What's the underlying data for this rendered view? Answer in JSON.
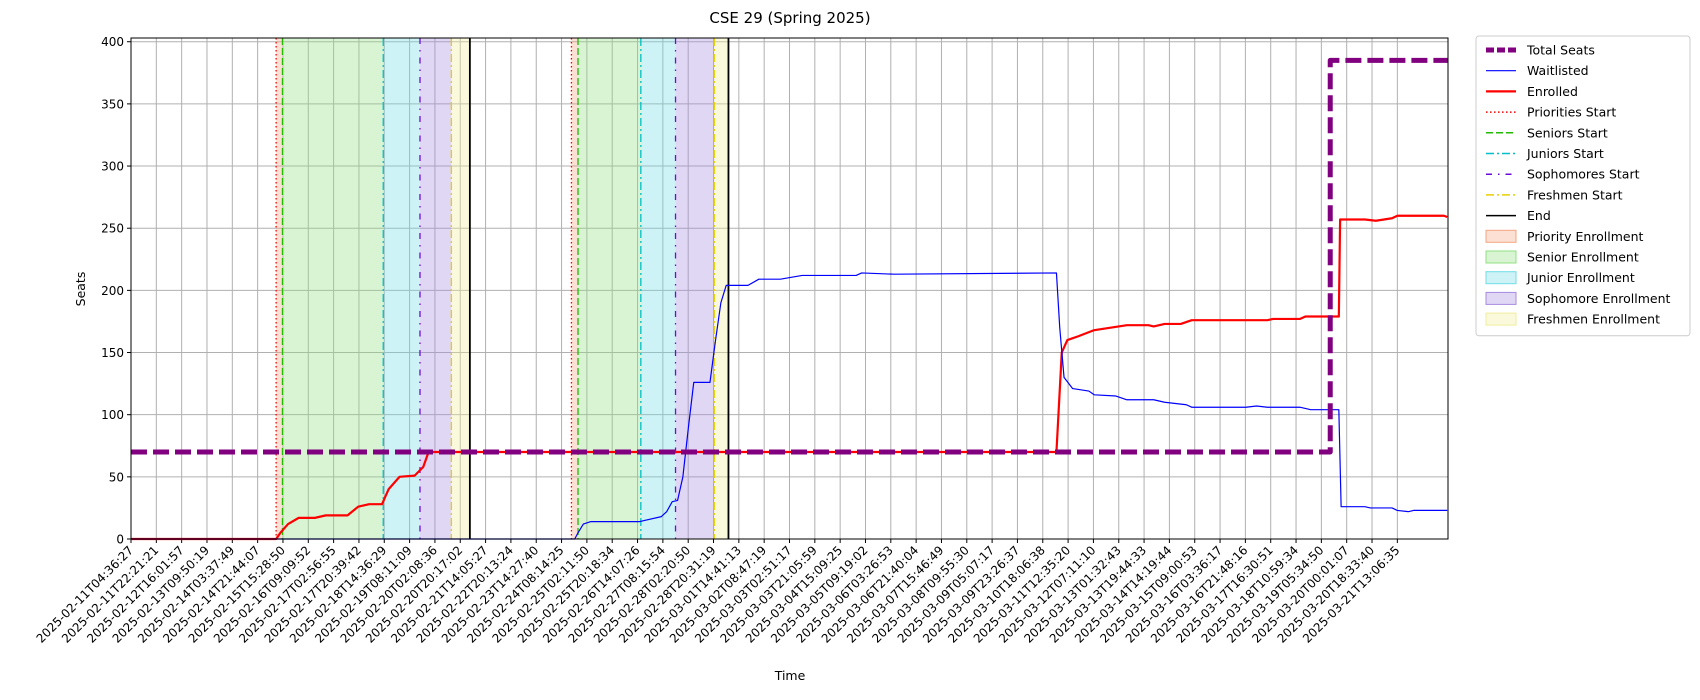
{
  "chart_data": {
    "type": "line",
    "title": "CSE 29 (Spring 2025)",
    "xlabel": "Time",
    "ylabel": "Seats",
    "xlim": [
      0,
      52
    ],
    "ylim": [
      0,
      403
    ],
    "yticks": [
      0,
      50,
      100,
      150,
      200,
      250,
      300,
      350,
      400
    ],
    "xticks": [
      {
        "value": 0,
        "label": "2025-02-11T04:36:27"
      },
      {
        "value": 1,
        "label": "2025-02-11T22:21:21"
      },
      {
        "value": 2,
        "label": "2025-02-12T16:01:57"
      },
      {
        "value": 3,
        "label": "2025-02-13T09:50:19"
      },
      {
        "value": 4,
        "label": "2025-02-14T03:37:49"
      },
      {
        "value": 5,
        "label": "2025-02-14T21:44:07"
      },
      {
        "value": 6,
        "label": "2025-02-15T15:28:50"
      },
      {
        "value": 7,
        "label": "2025-02-16T09:09:52"
      },
      {
        "value": 8,
        "label": "2025-02-17T02:56:55"
      },
      {
        "value": 9,
        "label": "2025-02-17T20:39:42"
      },
      {
        "value": 10,
        "label": "2025-02-18T14:36:29"
      },
      {
        "value": 11,
        "label": "2025-02-19T08:11:09"
      },
      {
        "value": 12,
        "label": "2025-02-20T02:08:36"
      },
      {
        "value": 13,
        "label": "2025-02-20T20:17:02"
      },
      {
        "value": 14,
        "label": "2025-02-21T14:05:27"
      },
      {
        "value": 15,
        "label": "2025-02-22T20:13:24"
      },
      {
        "value": 16,
        "label": "2025-02-23T14:27:40"
      },
      {
        "value": 17,
        "label": "2025-02-24T08:14:25"
      },
      {
        "value": 18,
        "label": "2025-02-25T02:11:50"
      },
      {
        "value": 19,
        "label": "2025-02-25T20:18:34"
      },
      {
        "value": 20,
        "label": "2025-02-26T14:07:26"
      },
      {
        "value": 21,
        "label": "2025-02-27T08:15:54"
      },
      {
        "value": 22,
        "label": "2025-02-28T02:20:50"
      },
      {
        "value": 23,
        "label": "2025-02-28T20:31:19"
      },
      {
        "value": 24,
        "label": "2025-03-01T14:41:13"
      },
      {
        "value": 25,
        "label": "2025-03-02T08:47:19"
      },
      {
        "value": 26,
        "label": "2025-03-03T02:51:17"
      },
      {
        "value": 27,
        "label": "2025-03-03T21:05:59"
      },
      {
        "value": 28,
        "label": "2025-03-04T15:09:25"
      },
      {
        "value": 29,
        "label": "2025-03-05T09:19:02"
      },
      {
        "value": 30,
        "label": "2025-03-06T03:26:53"
      },
      {
        "value": 31,
        "label": "2025-03-06T21:40:04"
      },
      {
        "value": 32,
        "label": "2025-03-07T15:46:49"
      },
      {
        "value": 33,
        "label": "2025-03-08T09:55:30"
      },
      {
        "value": 34,
        "label": "2025-03-09T05:07:17"
      },
      {
        "value": 35,
        "label": "2025-03-09T23:26:37"
      },
      {
        "value": 36,
        "label": "2025-03-10T18:06:38"
      },
      {
        "value": 37,
        "label": "2025-03-11T12:35:20"
      },
      {
        "value": 38,
        "label": "2025-03-12T07:11:10"
      },
      {
        "value": 39,
        "label": "2025-03-13T01:32:43"
      },
      {
        "value": 40,
        "label": "2025-03-13T19:44:33"
      },
      {
        "value": 41,
        "label": "2025-03-14T14:19:44"
      },
      {
        "value": 42,
        "label": "2025-03-15T09:00:53"
      },
      {
        "value": 43,
        "label": "2025-03-16T03:36:17"
      },
      {
        "value": 44,
        "label": "2025-03-16T21:48:16"
      },
      {
        "value": 45,
        "label": "2025-03-17T16:30:51"
      },
      {
        "value": 46,
        "label": "2025-03-18T10:59:34"
      },
      {
        "value": 47,
        "label": "2025-03-19T05:34:50"
      },
      {
        "value": 48,
        "label": "2025-03-20T00:01:07"
      },
      {
        "value": 49,
        "label": "2025-03-20T18:33:40"
      },
      {
        "value": 50,
        "label": "2025-03-21T13:06:35"
      }
    ],
    "grid": true,
    "legend": "outside-right",
    "series": [
      {
        "name": "Total Seats",
        "color": "purple",
        "width": 5,
        "dash": "dashed",
        "x": [
          0,
          47.35,
          47.35,
          52
        ],
        "values": [
          70,
          70,
          385,
          385
        ]
      },
      {
        "name": "Waitlisted",
        "color": "blue",
        "width": 1.2,
        "dash": "solid",
        "x": [
          0,
          17.52,
          17.65,
          17.86,
          18.16,
          20.09,
          20.3,
          20.94,
          21.15,
          21.37,
          21.58,
          21.79,
          22.01,
          22.22,
          22.86,
          23.08,
          23.29,
          23.5,
          24.36,
          24.79,
          25.64,
          26.5,
          28.63,
          28.85,
          30.13,
          36.54,
          36.67,
          36.84,
          37.18,
          37.82,
          38.03,
          38.89,
          39.32,
          40.38,
          40.81,
          41.67,
          41.88,
          44.02,
          44.44,
          44.87,
          46.15,
          46.58,
          47.69,
          47.78,
          48.72,
          48.93,
          49.79,
          50.0,
          50.43,
          50.64,
          51.97
        ],
        "values": [
          0,
          0,
          5,
          12,
          14,
          14,
          15,
          18,
          22,
          30,
          31,
          50,
          90,
          126,
          126,
          160,
          190,
          204,
          204,
          209,
          209,
          212,
          212,
          214,
          213,
          214,
          170,
          130,
          121,
          119,
          116,
          115,
          112,
          112,
          110,
          108,
          106,
          106,
          107,
          106,
          106,
          104,
          104,
          26,
          26,
          25,
          25,
          23,
          22,
          23,
          23
        ]
      },
      {
        "name": "Enrolled",
        "color": "red",
        "width": 2.2,
        "dash": "solid",
        "x": [
          0,
          5.73,
          5.9,
          6.2,
          6.62,
          7.26,
          7.69,
          8.55,
          8.97,
          9.4,
          9.91,
          10.17,
          10.6,
          11.2,
          11.54,
          11.75,
          36.54,
          36.75,
          36.97,
          37.39,
          38.03,
          39.32,
          40.17,
          40.38,
          40.81,
          41.45,
          41.88,
          44.87,
          45.09,
          46.15,
          46.37,
          47.69,
          47.74,
          48.72,
          49.15,
          49.79,
          50.0,
          51.84,
          51.97
        ],
        "values": [
          0,
          0,
          5,
          12,
          17,
          17,
          19,
          19,
          26,
          28,
          28,
          40,
          50,
          51,
          58,
          70,
          70,
          150,
          160,
          163,
          168,
          172,
          172,
          171,
          173,
          173,
          176,
          176,
          177,
          177,
          179,
          179,
          257,
          257,
          256,
          258,
          260,
          260,
          259
        ]
      }
    ],
    "markers": [
      {
        "name": "Priorities Start",
        "color": "red",
        "dash": "dotted",
        "x": [
          5.73,
          17.39
        ]
      },
      {
        "name": "Seniors Start",
        "color": "#22bb00",
        "dash": "dashed",
        "x": [
          5.98,
          17.65
        ]
      },
      {
        "name": "Juniors Start",
        "color": "#00bfc8",
        "dash": "dashdot",
        "x": [
          9.96,
          20.13
        ]
      },
      {
        "name": "Sophomores Start",
        "color": "#6a0dd8",
        "dash": "loose",
        "x": [
          11.41,
          21.5
        ]
      },
      {
        "name": "Freshmen Start",
        "color": "#e8d000",
        "dash": "dashdot",
        "x": [
          12.65,
          23.03
        ]
      },
      {
        "name": "End",
        "color": "black",
        "dash": "solid",
        "x": [
          13.38,
          23.59
        ]
      }
    ],
    "spans": [
      {
        "name": "Priority Enrollment",
        "color": "#f4a582",
        "ranges": [
          [
            5.73,
            5.98
          ],
          [
            17.39,
            17.65
          ]
        ]
      },
      {
        "name": "Senior Enrollment",
        "color": "#90e080",
        "ranges": [
          [
            5.98,
            9.96
          ],
          [
            17.65,
            20.13
          ]
        ]
      },
      {
        "name": "Junior Enrollment",
        "color": "#70dde6",
        "ranges": [
          [
            9.96,
            11.41
          ],
          [
            20.13,
            21.5
          ]
        ]
      },
      {
        "name": "Sophomore Enrollment",
        "color": "#a78be0",
        "ranges": [
          [
            11.41,
            12.65
          ],
          [
            21.5,
            23.03
          ]
        ]
      },
      {
        "name": "Freshmen Enrollment",
        "color": "#f0ee9c",
        "ranges": [
          [
            12.65,
            13.38
          ],
          [
            23.03,
            23.59
          ]
        ]
      }
    ],
    "span_alpha": 0.35
  }
}
